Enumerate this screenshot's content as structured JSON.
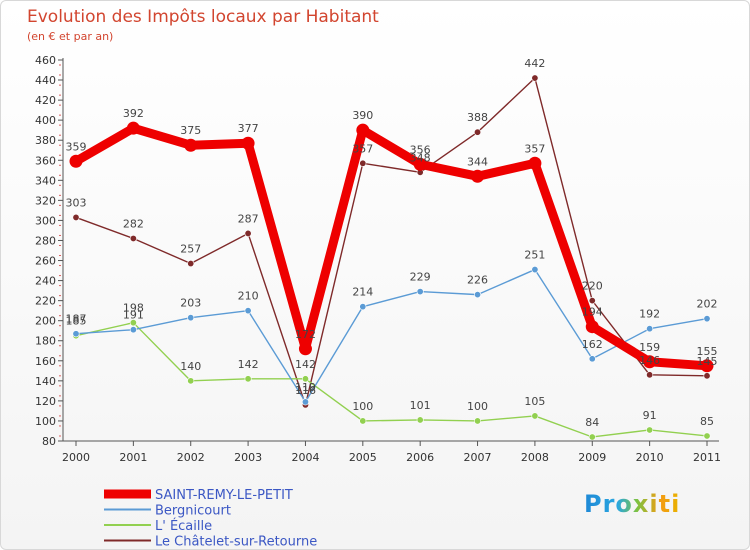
{
  "chart_data": {
    "type": "line",
    "title": "Evolution des Impôts locaux par Habitant",
    "subtitle": "(en € et par an)",
    "categories": [
      "2000",
      "2001",
      "2002",
      "2003",
      "2004",
      "2005",
      "2006",
      "2007",
      "2008",
      "2009",
      "2010",
      "2011"
    ],
    "ylim": [
      80,
      460
    ],
    "yticks": [
      80,
      100,
      120,
      140,
      160,
      180,
      200,
      220,
      240,
      260,
      280,
      300,
      320,
      340,
      360,
      380,
      400,
      420,
      440,
      460
    ],
    "grid": false,
    "legend_position": "bottom-left",
    "series": [
      {
        "name": "SAINT-REMY-LE-PETIT",
        "color": "#ee0000",
        "values": [
          359,
          392,
          375,
          377,
          172,
          390,
          356,
          344,
          357,
          194,
          159,
          155
        ]
      },
      {
        "name": "Bergnicourt",
        "color": "#5b9bd5",
        "values": [
          187,
          191,
          203,
          210,
          119,
          214,
          229,
          226,
          251,
          162,
          192,
          202
        ]
      },
      {
        "name": "L' Écaille",
        "color": "#92d050",
        "values": [
          185,
          198,
          140,
          142,
          142,
          100,
          101,
          100,
          105,
          84,
          91,
          85
        ]
      },
      {
        "name": "Le Châtelet-sur-Retourne",
        "color": "#7f2a2a",
        "values": [
          303,
          282,
          257,
          287,
          116,
          357,
          348,
          388,
          442,
          220,
          146,
          145
        ]
      }
    ]
  },
  "branding": {
    "logo_text": "Proxiti"
  }
}
